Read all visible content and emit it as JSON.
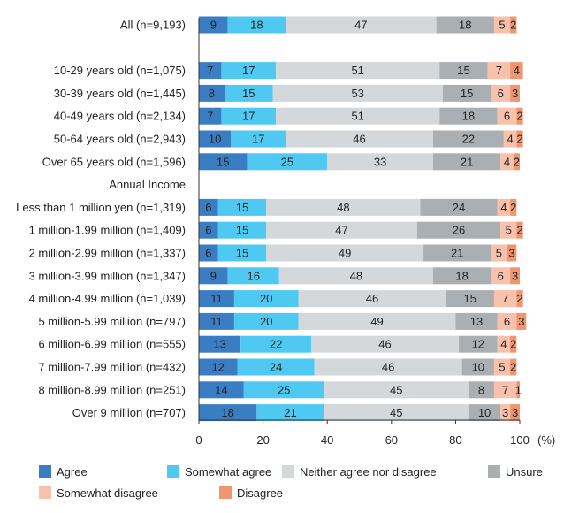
{
  "chart_data": {
    "type": "bar",
    "orientation": "horizontal",
    "stacked": true,
    "xlim": [
      0,
      100
    ],
    "x_ticks": [
      0,
      20,
      40,
      60,
      80,
      100
    ],
    "x_unit": "(%)",
    "grid": false,
    "legend_position": "bottom",
    "series": [
      {
        "name": "Agree",
        "color": "#3a7dc2"
      },
      {
        "name": "Somewhat agree",
        "color": "#4fc8f2"
      },
      {
        "name": "Neither agree nor disagree",
        "color": "#d5d8da"
      },
      {
        "name": "Unsure",
        "color": "#a9afb3"
      },
      {
        "name": "Somewhat disagree",
        "color": "#f7c1ac"
      },
      {
        "name": "Disagree",
        "color": "#f0956f"
      }
    ],
    "rows": [
      {
        "kind": "bar",
        "label": "All (n=9,193)",
        "values": [
          9,
          18,
          47,
          18,
          5,
          2
        ]
      },
      {
        "kind": "gap"
      },
      {
        "kind": "bar",
        "label": "10-29 years old (n=1,075)",
        "values": [
          7,
          17,
          51,
          15,
          7,
          4
        ]
      },
      {
        "kind": "bar",
        "label": "30-39 years old (n=1,445)",
        "values": [
          8,
          15,
          53,
          15,
          6,
          3
        ]
      },
      {
        "kind": "bar",
        "label": "40-49 years old (n=2,134)",
        "values": [
          7,
          17,
          51,
          18,
          6,
          2
        ]
      },
      {
        "kind": "bar",
        "label": "50-64 years old (n=2,943)",
        "values": [
          10,
          17,
          46,
          22,
          4,
          2
        ]
      },
      {
        "kind": "bar",
        "label": "Over 65 years old (n=1,596)",
        "values": [
          15,
          25,
          33,
          21,
          4,
          2
        ]
      },
      {
        "kind": "section",
        "label": "Annual Income"
      },
      {
        "kind": "bar",
        "label": "Less than 1 million yen (n=1,319)",
        "values": [
          6,
          15,
          48,
          24,
          4,
          2
        ]
      },
      {
        "kind": "bar",
        "label": "1 million-1.99 million (n=1,409)",
        "values": [
          6,
          15,
          47,
          26,
          5,
          2
        ]
      },
      {
        "kind": "bar",
        "label": "2 million-2.99 million (n=1,337)",
        "values": [
          6,
          15,
          49,
          21,
          5,
          3
        ]
      },
      {
        "kind": "bar",
        "label": "3 million-3.99 million (n=1,347)",
        "values": [
          9,
          16,
          48,
          18,
          6,
          3
        ]
      },
      {
        "kind": "bar",
        "label": "4 million-4.99 million (n=1,039)",
        "values": [
          11,
          20,
          46,
          15,
          7,
          2
        ]
      },
      {
        "kind": "bar",
        "label": "5 million-5.99 million (n=797)",
        "values": [
          11,
          20,
          49,
          13,
          6,
          3
        ]
      },
      {
        "kind": "bar",
        "label": "6 million-6.99 million (n=555)",
        "values": [
          13,
          22,
          46,
          12,
          4,
          2
        ]
      },
      {
        "kind": "bar",
        "label": "7 million-7.99 million (n=432)",
        "values": [
          12,
          24,
          46,
          10,
          5,
          2
        ]
      },
      {
        "kind": "bar",
        "label": "8 million-8.99 million (n=251)",
        "values": [
          14,
          25,
          45,
          8,
          7,
          1
        ]
      },
      {
        "kind": "bar",
        "label": "Over 9 million (n=707)",
        "values": [
          18,
          21,
          45,
          10,
          3,
          3
        ]
      }
    ]
  }
}
